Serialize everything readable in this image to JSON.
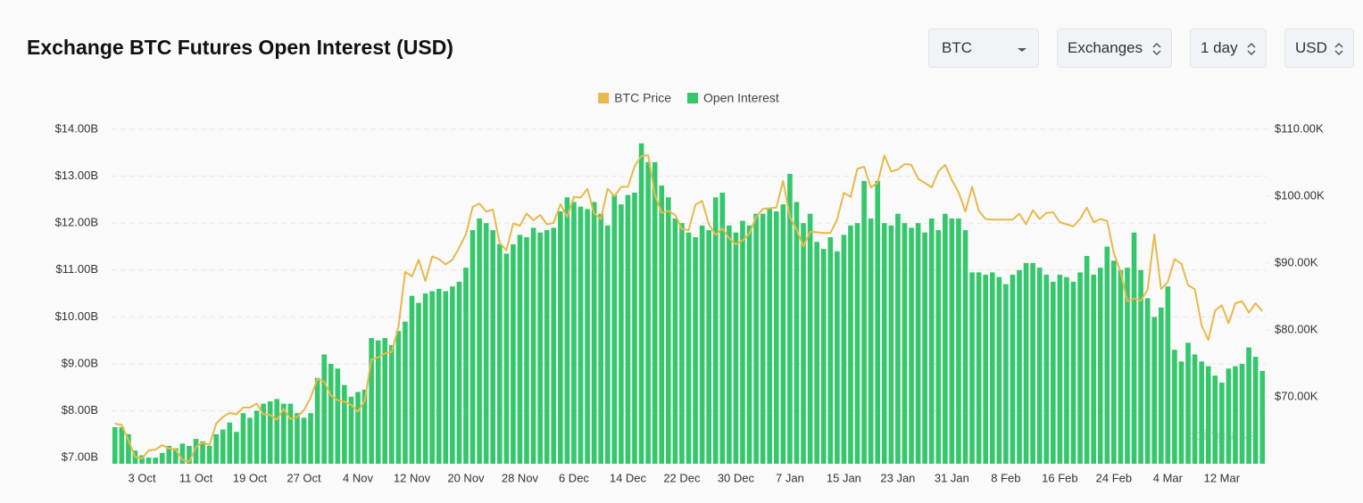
{
  "title": "Exchange BTC Futures Open Interest (USD)",
  "controls": [
    "BTC",
    "Exchanges",
    "1 day",
    "USD"
  ],
  "chart_data": {
    "type": "bar",
    "watermark": "coinglass",
    "legend": "top",
    "grid": true,
    "categories": [
      null,
      null,
      null,
      null,
      "3 Oct",
      null,
      null,
      null,
      null,
      null,
      null,
      null,
      "11 Oct",
      null,
      null,
      null,
      null,
      null,
      null,
      null,
      "19 Oct",
      null,
      null,
      null,
      null,
      null,
      null,
      null,
      "27 Oct",
      null,
      null,
      null,
      null,
      null,
      null,
      null,
      "4 Nov",
      null,
      null,
      null,
      null,
      null,
      null,
      null,
      "12 Nov",
      null,
      null,
      null,
      null,
      null,
      null,
      null,
      "20 Nov",
      null,
      null,
      null,
      null,
      null,
      null,
      null,
      "28 Nov",
      null,
      null,
      null,
      null,
      null,
      null,
      null,
      "6 Dec",
      null,
      null,
      null,
      null,
      null,
      null,
      null,
      "14 Dec",
      null,
      null,
      null,
      null,
      null,
      null,
      null,
      "22 Dec",
      null,
      null,
      null,
      null,
      null,
      null,
      null,
      "30 Dec",
      null,
      null,
      null,
      null,
      null,
      null,
      null,
      "7 Jan",
      null,
      null,
      null,
      null,
      null,
      null,
      null,
      "15 Jan",
      null,
      null,
      null,
      null,
      null,
      null,
      null,
      "23 Jan",
      null,
      null,
      null,
      null,
      null,
      null,
      null,
      "31 Jan",
      null,
      null,
      null,
      null,
      null,
      null,
      null,
      "8 Feb",
      null,
      null,
      null,
      null,
      null,
      null,
      null,
      "16 Feb",
      null,
      null,
      null,
      null,
      null,
      null,
      null,
      "24 Feb",
      null,
      null,
      null,
      null,
      null,
      null,
      null,
      "4 Mar",
      null,
      null,
      null,
      null,
      null,
      null,
      null,
      "12 Mar",
      null,
      null,
      null,
      null,
      null,
      null
    ],
    "ylim": [
      6.87,
      14
    ],
    "yticks": [
      {
        "value": 7,
        "label": "$7.00B"
      },
      {
        "value": 8,
        "label": "$8.00B"
      },
      {
        "value": 9,
        "label": "$9.00B"
      },
      {
        "value": 10,
        "label": "$10.00B"
      },
      {
        "value": 11,
        "label": "$11.00B"
      },
      {
        "value": 12,
        "label": "$12.00B"
      },
      {
        "value": 13,
        "label": "$13.00B"
      },
      {
        "value": 14,
        "label": "$14.00B"
      }
    ],
    "y2lim": [
      60000,
      110000
    ],
    "y2ticks": [
      {
        "value": 70000,
        "label": "$70.00K"
      },
      {
        "value": 80000,
        "label": "$80.00K"
      },
      {
        "value": 90000,
        "label": "$90.00K"
      },
      {
        "value": 100000,
        "label": "$100.00K"
      },
      {
        "value": 110000,
        "label": "$110.00K"
      }
    ],
    "series": [
      {
        "name": "BTC Price",
        "type": "line",
        "axis": "y2",
        "color": "#e8b94a",
        "values": [
          66000,
          65800,
          63500,
          61000,
          60800,
          62000,
          62100,
          62800,
          62300,
          62100,
          60600,
          60300,
          62500,
          63200,
          62800,
          66000,
          67000,
          67600,
          67400,
          68400,
          68400,
          69000,
          67400,
          67300,
          66600,
          68200,
          66700,
          67000,
          68000,
          69900,
          72700,
          72300,
          70200,
          69500,
          69300,
          68800,
          67800,
          69400,
          75600,
          75900,
          76500,
          76700,
          80400,
          88700,
          88000,
          90500,
          87300,
          91000,
          90600,
          89800,
          90500,
          92300,
          94300,
          98400,
          98900,
          97700,
          98000,
          93000,
          91900,
          95900,
          95600,
          97400,
          96400,
          97200,
          95800,
          96000,
          98800,
          96900,
          99900,
          99800,
          101100,
          97400,
          96600,
          101100,
          100000,
          101400,
          101400,
          104500,
          106000,
          106100,
          100200,
          97500,
          97800,
          97200,
          95100,
          94900,
          98700,
          99300,
          95800,
          94200,
          95200,
          93700,
          92800,
          93400,
          94400,
          96900,
          98100,
          98200,
          98300,
          102300,
          96900,
          95000,
          92500,
          94700,
          94600,
          94500,
          94500,
          96500,
          100500,
          99900,
          104100,
          104400,
          101300,
          102000,
          106100,
          103700,
          104000,
          104800,
          104700,
          102600,
          102000,
          101300,
          103700,
          104700,
          102400,
          100600,
          97700,
          101400,
          97800,
          96600,
          96500,
          96500,
          96500,
          96500,
          97400,
          95800,
          97900,
          96600,
          97500,
          97600,
          96100,
          95800,
          95500,
          96600,
          98300,
          96100,
          96600,
          96300,
          91500,
          88700,
          84300,
          84700,
          84400,
          86000,
          94300,
          86100,
          87200,
          90600,
          89900,
          86700,
          86100,
          80700,
          78500,
          82900,
          83700,
          81000,
          84000,
          84300,
          82600,
          84000,
          82800
        ]
      },
      {
        "name": "Open Interest",
        "type": "bar",
        "axis": "y",
        "color": "#34c76c",
        "values": [
          7.65,
          7.65,
          7.5,
          7.15,
          7.05,
          7.0,
          7.0,
          7.1,
          7.25,
          7.2,
          7.3,
          7.25,
          7.4,
          7.35,
          7.25,
          7.5,
          7.6,
          7.75,
          7.55,
          7.95,
          7.85,
          8.0,
          8.15,
          8.2,
          8.25,
          8.15,
          8.15,
          7.95,
          7.85,
          7.95,
          8.7,
          9.2,
          9.0,
          8.9,
          8.55,
          8.3,
          8.4,
          8.45,
          9.55,
          9.5,
          9.55,
          9.4,
          9.7,
          9.9,
          10.45,
          10.3,
          10.5,
          10.55,
          10.6,
          10.55,
          10.65,
          10.75,
          11.05,
          11.85,
          12.1,
          12.0,
          11.85,
          11.55,
          11.35,
          11.55,
          11.75,
          11.7,
          11.9,
          11.8,
          11.85,
          11.9,
          12.25,
          12.55,
          12.45,
          12.35,
          12.3,
          12.45,
          12.2,
          11.95,
          12.6,
          12.4,
          12.6,
          12.65,
          13.7,
          13.3,
          13.3,
          12.8,
          12.55,
          12.1,
          12.0,
          11.8,
          11.7,
          11.95,
          11.85,
          12.55,
          12.65,
          11.95,
          11.8,
          12.05,
          11.95,
          12.2,
          12.2,
          12.3,
          12.25,
          12.4,
          13.05,
          12.45,
          12.0,
          12.2,
          11.6,
          11.45,
          11.7,
          11.4,
          11.75,
          11.95,
          12.0,
          12.9,
          12.1,
          12.9,
          12.0,
          11.95,
          12.2,
          12.0,
          11.9,
          12.0,
          11.8,
          12.1,
          11.85,
          12.2,
          12.1,
          12.1,
          11.85,
          10.95,
          10.95,
          10.9,
          10.95,
          10.85,
          10.7,
          10.9,
          11.0,
          11.15,
          11.15,
          11.05,
          10.9,
          10.75,
          10.9,
          10.85,
          10.75,
          10.95,
          11.3,
          10.9,
          11.05,
          11.5,
          11.2,
          11.0,
          11.05,
          11.8,
          11.0,
          10.4,
          10.0,
          10.2,
          10.65,
          9.3,
          9.05,
          9.45,
          9.2,
          9.05,
          8.95,
          8.75,
          8.6,
          8.9,
          8.95,
          9.0,
          9.35,
          9.15,
          8.85
        ]
      }
    ]
  }
}
